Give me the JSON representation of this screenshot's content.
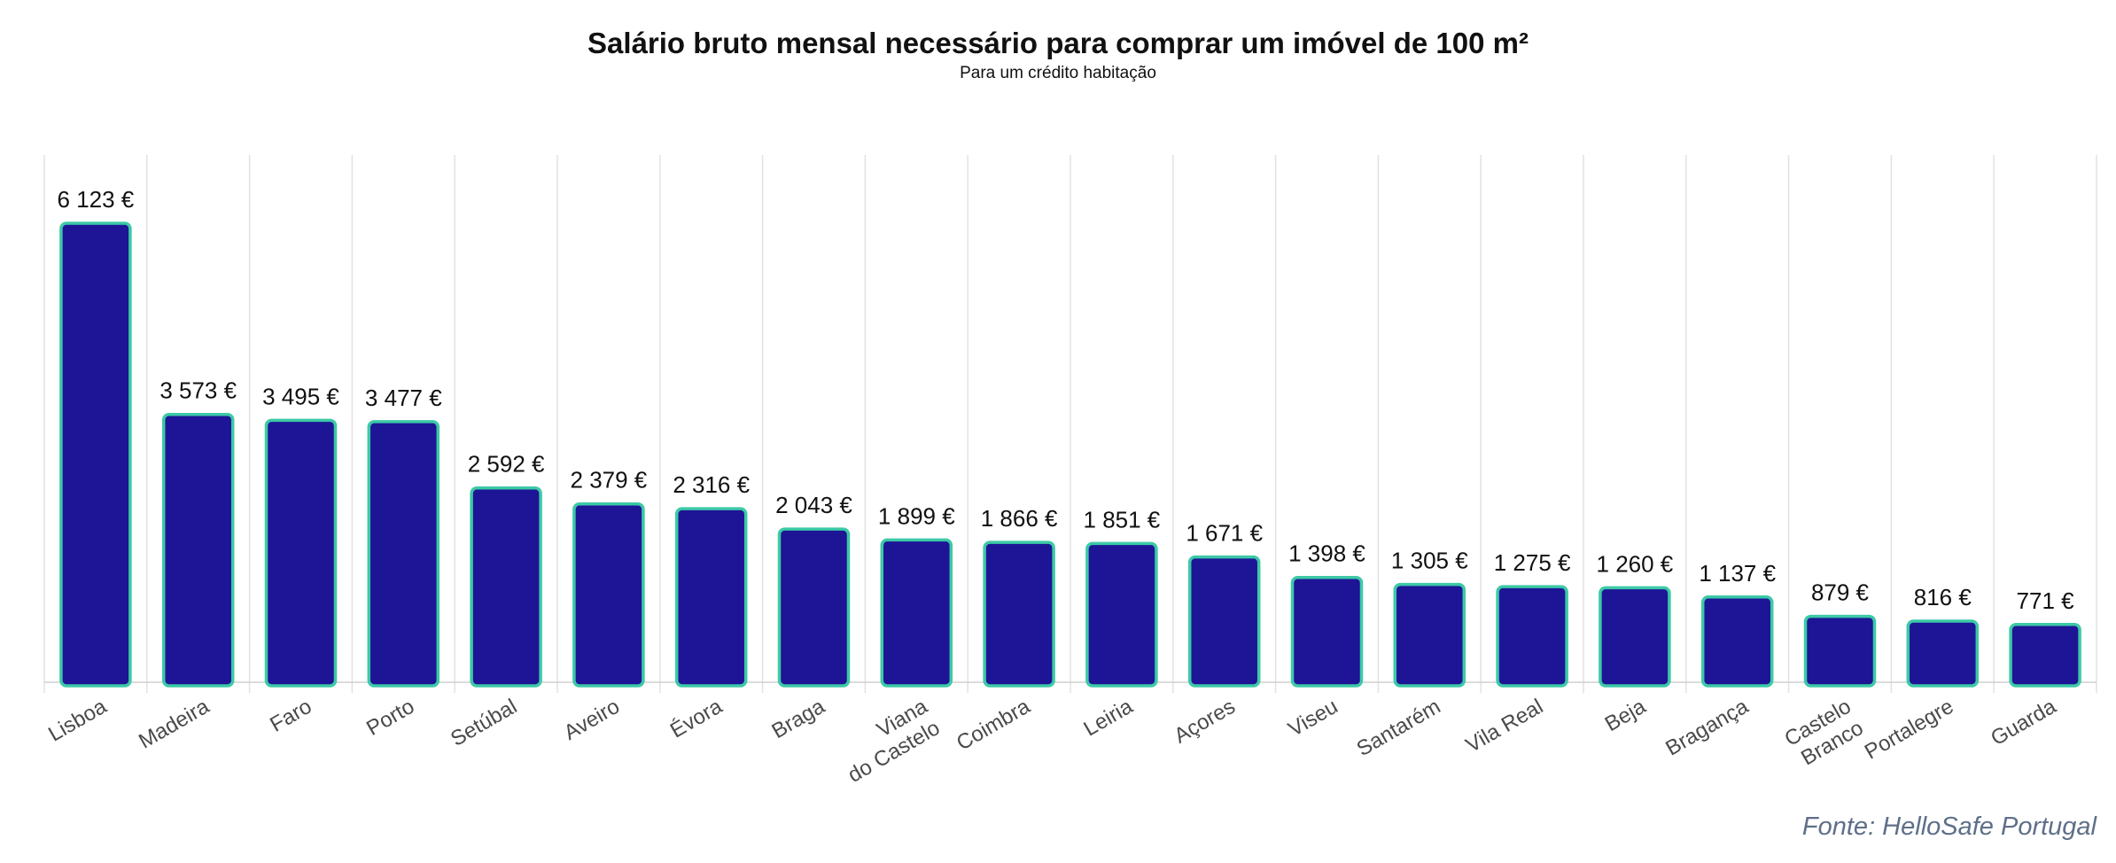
{
  "chart_data": {
    "type": "bar",
    "title": "Salário bruto mensal necessário para comprar um imóvel de 100 m²",
    "subtitle": "Para um crédito habitação",
    "xlabel": "",
    "ylabel": "",
    "grid": "vertical",
    "categories": [
      "Lisboa",
      "Madeira",
      "Faro",
      "Porto",
      "Setúbal",
      "Aveiro",
      "Évora",
      "Braga",
      "Viana\ndo Castelo",
      "Coimbra",
      "Leiria",
      "Açores",
      "Viseu",
      "Santarém",
      "Vila Real",
      "Beja",
      "Bragança",
      "Castelo\nBranco",
      "Portalegre",
      "Guarda"
    ],
    "values": [
      6123,
      3573,
      3495,
      3477,
      2592,
      2379,
      2316,
      2043,
      1899,
      1866,
      1851,
      1671,
      1398,
      1305,
      1275,
      1260,
      1137,
      879,
      816,
      771
    ],
    "value_labels": [
      "6 123 €",
      "3 573 €",
      "3 495 €",
      "3 477 €",
      "2 592 €",
      "2 379 €",
      "2 316 €",
      "2 043 €",
      "1 899 €",
      "1 866 €",
      "1 851 €",
      "1 671 €",
      "1 398 €",
      "1 305 €",
      "1 275 €",
      "1 260 €",
      "1 137 €",
      "879 €",
      "816 €",
      "771 €"
    ],
    "ylim": [
      0,
      7000
    ],
    "bar_color": "#1e1496",
    "bar_border_color": "#3cc9a6",
    "grid_color": "#e2e2e2",
    "source": "Fonte: HelloSafe Portugal"
  }
}
